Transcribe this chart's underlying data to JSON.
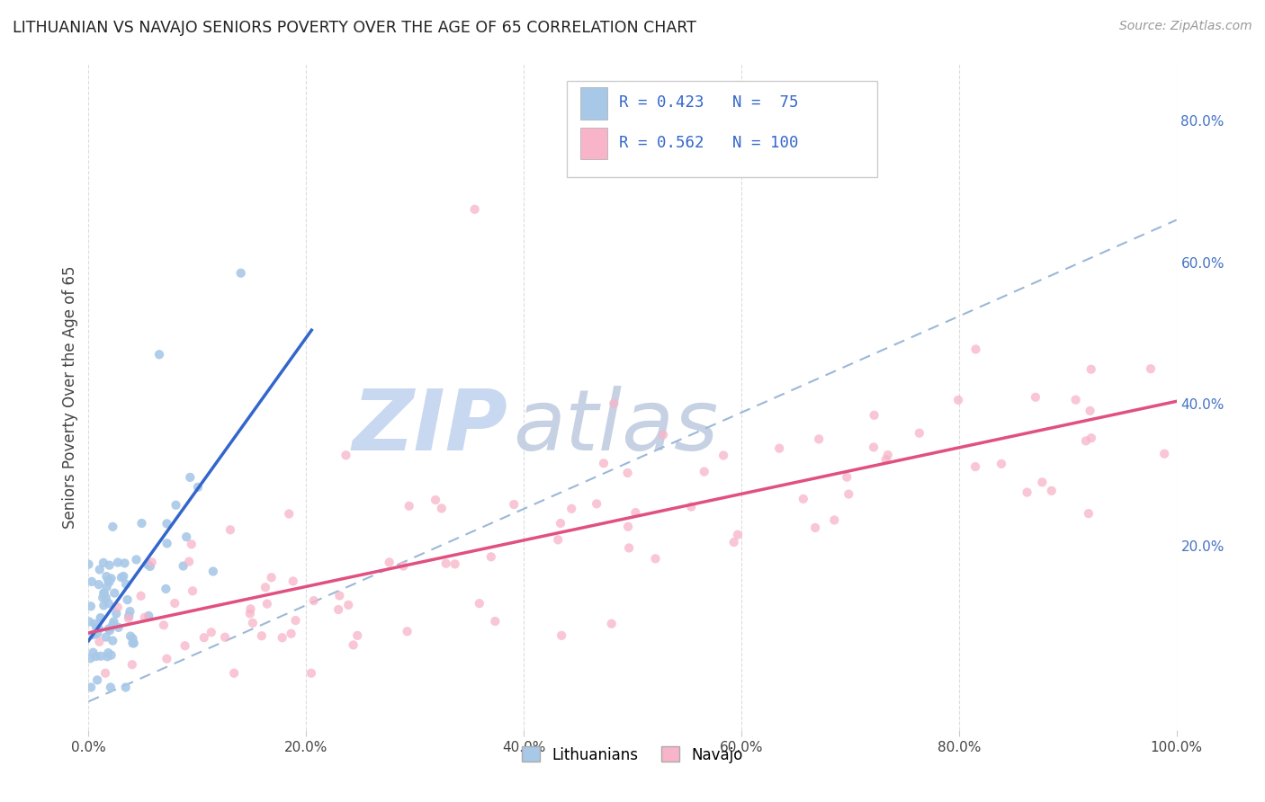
{
  "title": "LITHUANIAN VS NAVAJO SENIORS POVERTY OVER THE AGE OF 65 CORRELATION CHART",
  "source": "Source: ZipAtlas.com",
  "ylabel": "Seniors Poverty Over the Age of 65",
  "xlim": [
    0.0,
    1.0
  ],
  "ylim": [
    -0.06,
    0.88
  ],
  "xticks": [
    0.0,
    0.2,
    0.4,
    0.6,
    0.8,
    1.0
  ],
  "xticklabels": [
    "0.0%",
    "20.0%",
    "40.0%",
    "60.0%",
    "80.0%",
    "100.0%"
  ],
  "yticks_right": [
    0.2,
    0.4,
    0.6,
    0.8
  ],
  "yticklabels_right": [
    "20.0%",
    "40.0%",
    "60.0%",
    "80.0%"
  ],
  "legend_r1": "0.423",
  "legend_n1": "75",
  "legend_r2": "0.562",
  "legend_n2": "100",
  "color_lith": "#a8c8e8",
  "color_navajo": "#f8b4c8",
  "color_lith_line": "#3366cc",
  "color_navajo_line": "#e05080",
  "color_dashed_line": "#9bb8d8",
  "watermark_zip": "ZIP",
  "watermark_atlas": "atlas",
  "watermark_color": "#c8d8f0",
  "R_lith": 0.423,
  "N_lith": 75,
  "R_navajo": 0.562,
  "N_navajo": 100,
  "seed": 7
}
